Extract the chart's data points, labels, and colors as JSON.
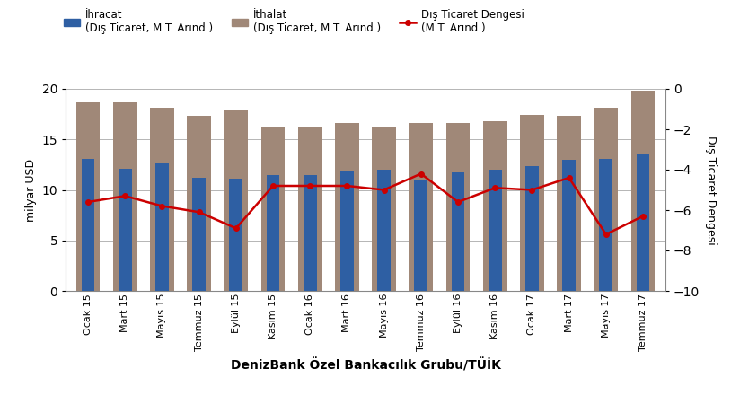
{
  "categories": [
    "Ocak 15",
    "Mart 15",
    "Mayıs 15",
    "Temmuz 15",
    "Eylül 15",
    "Kasım 15",
    "Ocak 16",
    "Mart 16",
    "Mayıs 16",
    "Temmuz 16",
    "Eylül 16",
    "Kasım 16",
    "Ocak 17",
    "Mart 17",
    "Mayıs 17",
    "Temmuz 17"
  ],
  "ihracat": [
    13.1,
    12.1,
    12.6,
    11.2,
    11.1,
    11.5,
    11.5,
    11.8,
    12.0,
    11.0,
    11.7,
    12.0,
    12.4,
    13.0,
    13.1,
    13.5
  ],
  "ithalat": [
    18.7,
    18.7,
    18.1,
    17.3,
    18.0,
    16.3,
    16.3,
    16.6,
    16.2,
    16.6,
    16.6,
    16.8,
    17.4,
    17.3,
    18.1,
    19.8
  ],
  "dis_ticaret_line": [
    -5.6,
    -5.3,
    -5.8,
    -6.1,
    -6.9,
    -4.8,
    -4.8,
    -4.8,
    -5.0,
    -4.2,
    -5.6,
    -4.9,
    -5.0,
    -4.4,
    -7.2,
    -6.3
  ],
  "ihracat_color": "#2E5FA3",
  "ithalat_color": "#A08878",
  "line_color": "#CC0000",
  "ylabel_left": "milyar USD",
  "ylabel_right": "Dış Ticaret Dengesi",
  "xlabel": "DenizBank Özel Bankacılık Grubu/TÜİK",
  "ylim_left": [
    0,
    20
  ],
  "ylim_right": [
    -10,
    0
  ],
  "yticks_left": [
    0,
    5,
    10,
    15,
    20
  ],
  "yticks_right": [
    -10,
    -8,
    -6,
    -4,
    -2,
    0
  ],
  "legend_ihracat": "İhracat",
  "legend_ithalat": "İthalat",
  "legend_dis_ticaret": "Dış Ticaret Dengesi",
  "legend_sub1": "(Dış Ticaret, M.T. Arınd.)",
  "legend_sub2": "(Dış Ticaret, M.T. Arınd.)",
  "legend_sub3": "(M.T. Arınd.)",
  "background_color": "#ffffff",
  "grid_color": "#aaaaaa"
}
